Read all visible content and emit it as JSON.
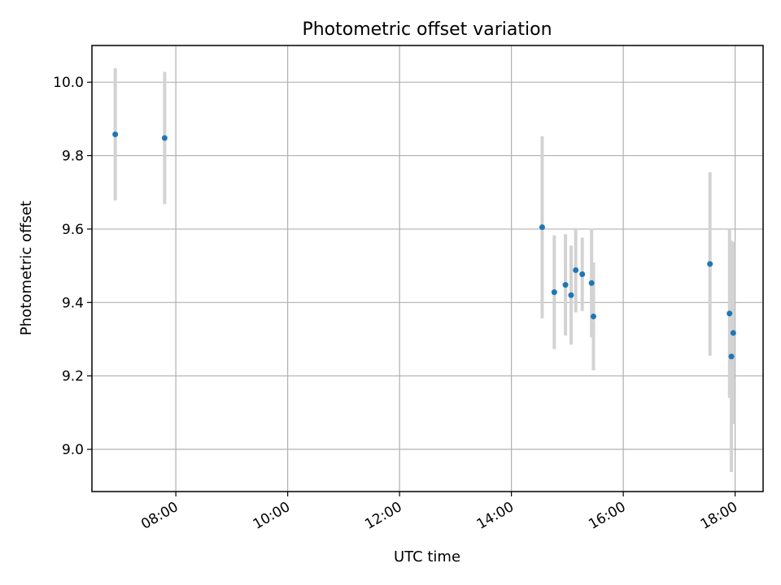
{
  "chart_data": {
    "type": "scatter",
    "title": "Photometric offset variation",
    "xlabel": "UTC time",
    "ylabel": "Photometric offset",
    "xlim": [
      "06:30",
      "18:30"
    ],
    "ylim": [
      8.885,
      10.1
    ],
    "x_ticks": [
      "08:00",
      "10:00",
      "12:00",
      "14:00",
      "16:00",
      "18:00"
    ],
    "y_ticks": [
      "9.0",
      "9.2",
      "9.4",
      "9.6",
      "9.8",
      "10.0"
    ],
    "grid": true,
    "legend": "none",
    "colors": {
      "point": "#1f77b4",
      "errorbar": "#d3d3d3",
      "grid": "#b0b0b0",
      "axes": "#000000"
    },
    "points": [
      {
        "x": "06:55",
        "y": 9.858,
        "err": 0.18
      },
      {
        "x": "07:48",
        "y": 9.848,
        "err": 0.18
      },
      {
        "x": "14:33",
        "y": 9.605,
        "err": 0.248
      },
      {
        "x": "14:46",
        "y": 9.428,
        "err": 0.155
      },
      {
        "x": "14:58",
        "y": 9.448,
        "err": 0.138
      },
      {
        "x": "15:04",
        "y": 9.42,
        "err": 0.135
      },
      {
        "x": "15:09",
        "y": 9.488,
        "err": 0.115
      },
      {
        "x": "15:16",
        "y": 9.477,
        "err": 0.1
      },
      {
        "x": "15:26",
        "y": 9.453,
        "err": 0.148
      },
      {
        "x": "15:28",
        "y": 9.362,
        "err": 0.147
      },
      {
        "x": "17:33",
        "y": 9.505,
        "err": 0.25
      },
      {
        "x": "17:54",
        "y": 9.37,
        "err": 0.23
      },
      {
        "x": "17:56",
        "y": 9.253,
        "err": 0.315
      },
      {
        "x": "17:58",
        "y": 9.317,
        "err": 0.248
      }
    ]
  }
}
